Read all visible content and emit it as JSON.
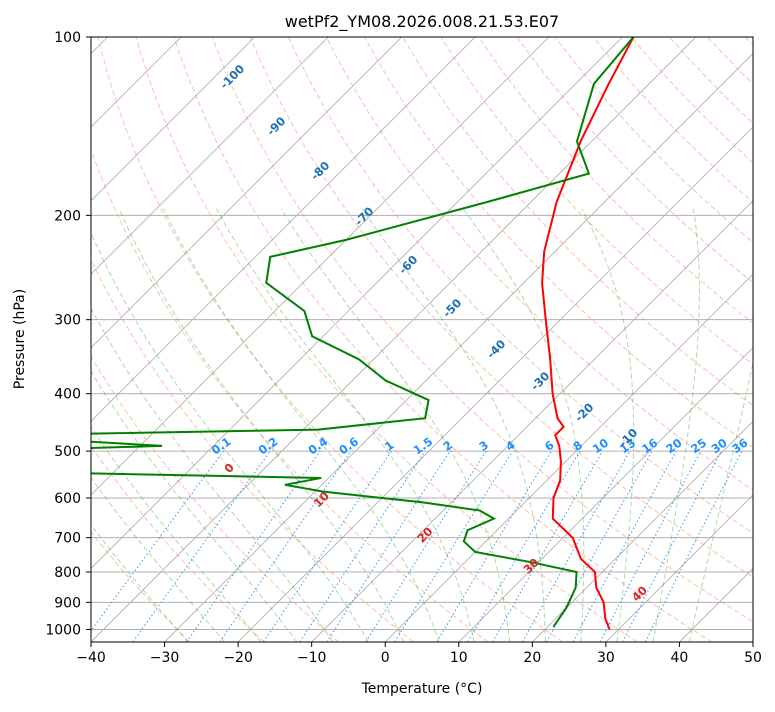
{
  "chart_data": {
    "type": "line",
    "title": "wetPf2_YM08.2026.008.21.53.E07",
    "xlabel": "Temperature (°C)",
    "ylabel": "Pressure (hPa)",
    "xlim": [
      -40,
      50
    ],
    "ylim": [
      1050,
      100
    ],
    "y_scale": "log",
    "skew": "skew-T log-P diagram",
    "grid": true,
    "x_ticks": [
      -40,
      -30,
      -20,
      -10,
      0,
      10,
      20,
      30,
      40,
      50
    ],
    "x_tick_labels": [
      "−40",
      "−30",
      "−20",
      "−10",
      "0",
      "10",
      "20",
      "30",
      "40",
      "50"
    ],
    "y_ticks": [
      100,
      200,
      300,
      400,
      500,
      600,
      700,
      800,
      900,
      1000
    ],
    "y_tick_labels": [
      "100",
      "200",
      "300",
      "400",
      "500",
      "600",
      "700",
      "800",
      "900",
      "1000"
    ],
    "series": [
      {
        "color": "#ff0000",
        "points": [
          {
            "x": -48.5,
            "y": 100
          },
          {
            "x": -45.5,
            "y": 120
          },
          {
            "x": -41.5,
            "y": 150
          },
          {
            "x": -36.5,
            "y": 190
          },
          {
            "x": -31.5,
            "y": 230
          },
          {
            "x": -27.5,
            "y": 260
          },
          {
            "x": -22.0,
            "y": 300
          },
          {
            "x": -16.0,
            "y": 350
          },
          {
            "x": -11.0,
            "y": 400
          },
          {
            "x": -7.0,
            "y": 440
          },
          {
            "x": -5.0,
            "y": 455
          },
          {
            "x": -5.0,
            "y": 470
          },
          {
            "x": -3.0,
            "y": 490
          },
          {
            "x": -0.7,
            "y": 520
          },
          {
            "x": 1.8,
            "y": 560
          },
          {
            "x": 3.3,
            "y": 600
          },
          {
            "x": 6.0,
            "y": 650
          },
          {
            "x": 11.3,
            "y": 700
          },
          {
            "x": 15.3,
            "y": 760
          },
          {
            "x": 19.0,
            "y": 800
          },
          {
            "x": 21.3,
            "y": 850
          },
          {
            "x": 24.3,
            "y": 900
          },
          {
            "x": 26.8,
            "y": 960
          },
          {
            "x": 28.8,
            "y": 1000
          }
        ]
      },
      {
        "color": "#008000",
        "points": [
          {
            "x": -48.5,
            "y": 100
          },
          {
            "x": -47.5,
            "y": 120
          },
          {
            "x": -42.0,
            "y": 150
          },
          {
            "x": -36.0,
            "y": 170
          },
          {
            "x": -46.0,
            "y": 190
          },
          {
            "x": -60.0,
            "y": 220
          },
          {
            "x": -68.0,
            "y": 235
          },
          {
            "x": -65.0,
            "y": 260
          },
          {
            "x": -56.0,
            "y": 290
          },
          {
            "x": -51.5,
            "y": 320
          },
          {
            "x": -42.0,
            "y": 350
          },
          {
            "x": -35.5,
            "y": 380
          },
          {
            "x": -27.0,
            "y": 410
          },
          {
            "x": -25.0,
            "y": 440
          },
          {
            "x": -38.0,
            "y": 460
          },
          {
            "x": -80.0,
            "y": 470
          },
          {
            "x": -70.0,
            "y": 480
          },
          {
            "x": -57.0,
            "y": 490
          },
          {
            "x": -80.0,
            "y": 500
          },
          {
            "x": -80.0,
            "y": 540
          },
          {
            "x": -31.0,
            "y": 555
          },
          {
            "x": -35.0,
            "y": 570
          },
          {
            "x": -29.0,
            "y": 585
          },
          {
            "x": -14.0,
            "y": 610
          },
          {
            "x": -5.0,
            "y": 630
          },
          {
            "x": -2.0,
            "y": 650
          },
          {
            "x": -4.0,
            "y": 680
          },
          {
            "x": -3.0,
            "y": 710
          },
          {
            "x": 0.0,
            "y": 740
          },
          {
            "x": 9.0,
            "y": 770
          },
          {
            "x": 16.5,
            "y": 800
          },
          {
            "x": 18.5,
            "y": 850
          },
          {
            "x": 20.0,
            "y": 920
          },
          {
            "x": 20.8,
            "y": 990
          }
        ]
      }
    ],
    "background_line_labels": {
      "dry_adiabats": [
        "-100",
        "-90",
        "-80",
        "-70",
        "-60",
        "-50",
        "-40",
        "-30",
        "-20",
        "-10",
        "0",
        "10",
        "20",
        "30",
        "40"
      ],
      "mixing_ratio": [
        "0.1",
        "0.2",
        "0.4",
        "0.6",
        "1",
        "1.5",
        "2",
        "3",
        "4",
        "6",
        "8",
        "10",
        "13",
        "16",
        "20",
        "25",
        "30",
        "36"
      ]
    },
    "background_line_values": {
      "dry_adiabats": [
        -100,
        -90,
        -80,
        -70,
        -60,
        -50,
        -40,
        -30,
        -20,
        -10,
        0,
        10,
        20,
        30,
        40
      ],
      "mixing_ratio": [
        0.1,
        0.2,
        0.4,
        0.6,
        1,
        1.5,
        2,
        3,
        4,
        6,
        8,
        10,
        13,
        16,
        20,
        25,
        30,
        36
      ]
    },
    "colors": {
      "temperature": "#ff0000",
      "dewpoint": "#008000",
      "dry_adiabat": "#ff7f50",
      "moist_adiabat": "#2ca02c",
      "mixing_ratio": "#1e90ff",
      "isotherm": "#8c8c8c",
      "adiabat_label_cold": "#1f6fb4",
      "adiabat_label_warm": "#d62728"
    }
  }
}
